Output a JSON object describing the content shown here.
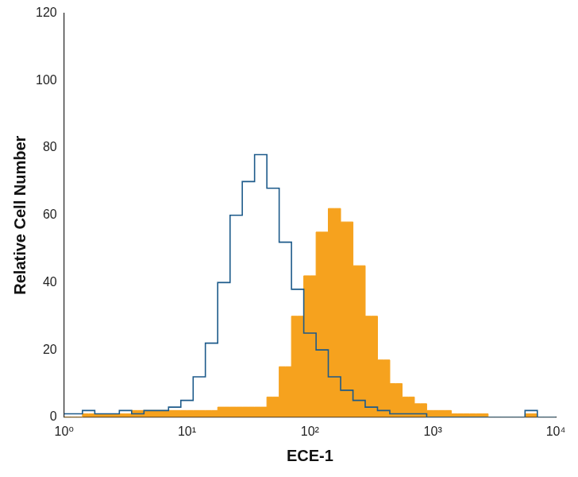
{
  "chart_data": {
    "type": "line",
    "x_label": "ECE-1",
    "y_label": "Relative Cell Number",
    "x": [
      1,
      1.26,
      1.58,
      2,
      2.51,
      3.16,
      3.98,
      5.01,
      6.31,
      7.94,
      10,
      12.6,
      15.8,
      20,
      25.1,
      31.6,
      39.8,
      50.1,
      63.1,
      79.4,
      100,
      126,
      158,
      200,
      251,
      316,
      398,
      501,
      631,
      794,
      1000,
      1259,
      1585,
      1995,
      2512,
      3162,
      3981,
      5012,
      6310,
      7943,
      10000
    ],
    "series": [
      {
        "type": "line",
        "color": "#1c5a8a",
        "values": [
          1,
          1,
          2,
          1,
          1,
          2,
          1,
          2,
          2,
          3,
          5,
          12,
          22,
          40,
          60,
          70,
          78,
          68,
          52,
          38,
          25,
          20,
          12,
          8,
          5,
          3,
          2,
          1,
          1,
          1,
          0,
          0,
          0,
          0,
          0,
          0,
          0,
          0,
          2,
          0,
          0
        ]
      },
      {
        "type": "area",
        "color": "#f6a21e",
        "values": [
          0,
          0,
          1,
          1,
          1,
          1,
          2,
          2,
          2,
          2,
          2,
          2,
          2,
          3,
          3,
          3,
          3,
          6,
          15,
          30,
          42,
          55,
          62,
          58,
          45,
          30,
          17,
          10,
          6,
          4,
          2,
          2,
          1,
          1,
          1,
          0,
          0,
          0,
          1,
          0,
          0
        ]
      }
    ],
    "log": "x",
    "grid": false,
    "xlim": [
      1,
      10000
    ],
    "xticks": [
      {
        "value": 1,
        "label": "10⁰"
      },
      {
        "value": 10,
        "label": "10¹"
      },
      {
        "value": 100,
        "label": "10²"
      },
      {
        "value": 1000,
        "label": "10³"
      },
      {
        "value": 10000,
        "label": "10⁴"
      }
    ],
    "ylim": [
      0,
      120
    ],
    "yticks": [
      0,
      20,
      40,
      60,
      80,
      100,
      120
    ]
  }
}
